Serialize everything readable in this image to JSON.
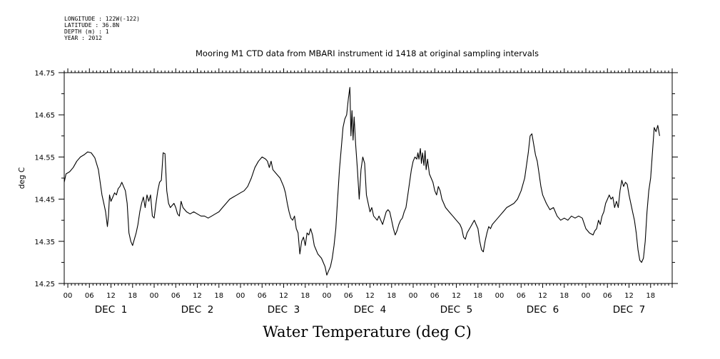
{
  "meta": {
    "longitude": "LONGITUDE : 122W(-122)",
    "latitude": "LATITUDE : 36.8N",
    "depth": "DEPTH (m) : 1",
    "year": "YEAR : 2012"
  },
  "chart_data": {
    "type": "line",
    "title": "Mooring M1 CTD data from MBARI instrument id 1418 at original sampling intervals",
    "xlabel": "Water Temperature (deg C)",
    "ylabel": "deg C",
    "ylim": [
      14.25,
      14.75
    ],
    "yticks": [
      "14.25",
      "14.35",
      "14.45",
      "14.55",
      "14.65",
      "14.75"
    ],
    "xlim_hours": [
      -1,
      168
    ],
    "xhour_labels": [
      "00",
      "06",
      "12",
      "18"
    ],
    "day_labels": [
      "DEC  1",
      "DEC  2",
      "DEC  3",
      "DEC  4",
      "DEC  5",
      "DEC  6",
      "DEC  7"
    ],
    "grid": false,
    "line_color": "#000000",
    "series": [
      {
        "points": [
          [
            -1.0,
            14.49
          ],
          [
            -0.5,
            14.51
          ],
          [
            0.5,
            14.515
          ],
          [
            1.5,
            14.525
          ],
          [
            2.5,
            14.54
          ],
          [
            3.5,
            14.55
          ],
          [
            4.5,
            14.555
          ],
          [
            5.5,
            14.562
          ],
          [
            6.5,
            14.56
          ],
          [
            7.5,
            14.548
          ],
          [
            8.5,
            14.52
          ],
          [
            9.0,
            14.49
          ],
          [
            9.5,
            14.46
          ],
          [
            10.0,
            14.44
          ],
          [
            10.5,
            14.42
          ],
          [
            11.0,
            14.385
          ],
          [
            11.3,
            14.41
          ],
          [
            11.6,
            14.46
          ],
          [
            12.0,
            14.445
          ],
          [
            12.5,
            14.455
          ],
          [
            13.0,
            14.465
          ],
          [
            13.5,
            14.46
          ],
          [
            14.0,
            14.475
          ],
          [
            14.5,
            14.48
          ],
          [
            15.0,
            14.49
          ],
          [
            15.5,
            14.48
          ],
          [
            16.0,
            14.47
          ],
          [
            16.5,
            14.44
          ],
          [
            17.0,
            14.37
          ],
          [
            17.5,
            14.35
          ],
          [
            18.0,
            14.34
          ],
          [
            18.5,
            14.355
          ],
          [
            19.0,
            14.37
          ],
          [
            19.5,
            14.39
          ],
          [
            20.0,
            14.42
          ],
          [
            20.5,
            14.44
          ],
          [
            21.0,
            14.455
          ],
          [
            21.5,
            14.43
          ],
          [
            22.0,
            14.46
          ],
          [
            22.5,
            14.445
          ],
          [
            23.0,
            14.46
          ],
          [
            23.5,
            14.41
          ],
          [
            24.0,
            14.405
          ],
          [
            24.5,
            14.44
          ],
          [
            25.0,
            14.47
          ],
          [
            25.5,
            14.49
          ],
          [
            26.0,
            14.495
          ],
          [
            26.5,
            14.56
          ],
          [
            27.0,
            14.558
          ],
          [
            27.5,
            14.47
          ],
          [
            28.0,
            14.44
          ],
          [
            28.5,
            14.43
          ],
          [
            29.0,
            14.435
          ],
          [
            29.5,
            14.44
          ],
          [
            30.0,
            14.43
          ],
          [
            30.5,
            14.415
          ],
          [
            31.0,
            14.41
          ],
          [
            31.5,
            14.445
          ],
          [
            32.0,
            14.43
          ],
          [
            33.0,
            14.42
          ],
          [
            34.0,
            14.415
          ],
          [
            35.0,
            14.42
          ],
          [
            36.0,
            14.415
          ],
          [
            37.0,
            14.41
          ],
          [
            38.0,
            14.41
          ],
          [
            39.0,
            14.405
          ],
          [
            40.0,
            14.41
          ],
          [
            41.0,
            14.415
          ],
          [
            42.0,
            14.42
          ],
          [
            43.0,
            14.43
          ],
          [
            44.0,
            14.44
          ],
          [
            45.0,
            14.45
          ],
          [
            46.0,
            14.455
          ],
          [
            47.0,
            14.46
          ],
          [
            48.0,
            14.465
          ],
          [
            49.0,
            14.47
          ],
          [
            50.0,
            14.48
          ],
          [
            51.0,
            14.5
          ],
          [
            52.0,
            14.525
          ],
          [
            53.0,
            14.54
          ],
          [
            54.0,
            14.55
          ],
          [
            55.0,
            14.545
          ],
          [
            55.5,
            14.54
          ],
          [
            56.0,
            14.525
          ],
          [
            56.5,
            14.54
          ],
          [
            57.0,
            14.52
          ],
          [
            58.0,
            14.51
          ],
          [
            59.0,
            14.5
          ],
          [
            60.0,
            14.48
          ],
          [
            60.5,
            14.465
          ],
          [
            61.0,
            14.44
          ],
          [
            61.5,
            14.42
          ],
          [
            62.0,
            14.405
          ],
          [
            62.5,
            14.4
          ],
          [
            63.0,
            14.41
          ],
          [
            63.5,
            14.38
          ],
          [
            64.0,
            14.37
          ],
          [
            64.5,
            14.32
          ],
          [
            65.0,
            14.35
          ],
          [
            65.5,
            14.36
          ],
          [
            66.0,
            14.34
          ],
          [
            66.5,
            14.37
          ],
          [
            67.0,
            14.365
          ],
          [
            67.5,
            14.38
          ],
          [
            68.0,
            14.365
          ],
          [
            68.5,
            14.34
          ],
          [
            69.0,
            14.33
          ],
          [
            69.5,
            14.32
          ],
          [
            70.0,
            14.315
          ],
          [
            70.5,
            14.31
          ],
          [
            71.0,
            14.3
          ],
          [
            71.5,
            14.29
          ],
          [
            72.0,
            14.27
          ],
          [
            72.5,
            14.28
          ],
          [
            73.0,
            14.29
          ],
          [
            73.5,
            14.31
          ],
          [
            74.0,
            14.34
          ],
          [
            74.5,
            14.38
          ],
          [
            75.0,
            14.45
          ],
          [
            75.5,
            14.52
          ],
          [
            76.0,
            14.57
          ],
          [
            76.5,
            14.62
          ],
          [
            77.0,
            14.64
          ],
          [
            77.5,
            14.65
          ],
          [
            78.0,
            14.69
          ],
          [
            78.4,
            14.715
          ],
          [
            78.7,
            14.6
          ],
          [
            79.0,
            14.66
          ],
          [
            79.3,
            14.59
          ],
          [
            79.6,
            14.645
          ],
          [
            80.0,
            14.58
          ],
          [
            80.5,
            14.52
          ],
          [
            81.0,
            14.45
          ],
          [
            81.5,
            14.52
          ],
          [
            82.0,
            14.55
          ],
          [
            82.5,
            14.535
          ],
          [
            83.0,
            14.46
          ],
          [
            83.5,
            14.44
          ],
          [
            84.0,
            14.42
          ],
          [
            84.5,
            14.43
          ],
          [
            85.0,
            14.41
          ],
          [
            85.5,
            14.405
          ],
          [
            86.0,
            14.4
          ],
          [
            86.5,
            14.41
          ],
          [
            87.0,
            14.4
          ],
          [
            87.5,
            14.39
          ],
          [
            88.0,
            14.405
          ],
          [
            88.5,
            14.42
          ],
          [
            89.0,
            14.425
          ],
          [
            89.5,
            14.42
          ],
          [
            90.0,
            14.4
          ],
          [
            90.5,
            14.38
          ],
          [
            91.0,
            14.365
          ],
          [
            91.5,
            14.375
          ],
          [
            92.0,
            14.39
          ],
          [
            92.5,
            14.4
          ],
          [
            93.0,
            14.405
          ],
          [
            93.5,
            14.42
          ],
          [
            94.0,
            14.43
          ],
          [
            94.5,
            14.46
          ],
          [
            95.0,
            14.49
          ],
          [
            95.5,
            14.52
          ],
          [
            96.0,
            14.54
          ],
          [
            96.5,
            14.55
          ],
          [
            97.0,
            14.545
          ],
          [
            97.3,
            14.56
          ],
          [
            97.6,
            14.545
          ],
          [
            98.0,
            14.57
          ],
          [
            98.3,
            14.535
          ],
          [
            98.6,
            14.56
          ],
          [
            99.0,
            14.53
          ],
          [
            99.3,
            14.565
          ],
          [
            99.6,
            14.52
          ],
          [
            100.0,
            14.545
          ],
          [
            100.5,
            14.51
          ],
          [
            101.0,
            14.5
          ],
          [
            101.5,
            14.49
          ],
          [
            102.0,
            14.47
          ],
          [
            102.5,
            14.46
          ],
          [
            103.0,
            14.48
          ],
          [
            103.5,
            14.47
          ],
          [
            104.0,
            14.45
          ],
          [
            105.0,
            14.43
          ],
          [
            106.0,
            14.42
          ],
          [
            107.0,
            14.41
          ],
          [
            108.0,
            14.4
          ],
          [
            109.0,
            14.39
          ],
          [
            109.5,
            14.38
          ],
          [
            110.0,
            14.36
          ],
          [
            110.5,
            14.355
          ],
          [
            111.0,
            14.37
          ],
          [
            112.0,
            14.385
          ],
          [
            113.0,
            14.4
          ],
          [
            113.5,
            14.39
          ],
          [
            114.0,
            14.38
          ],
          [
            114.5,
            14.35
          ],
          [
            115.0,
            14.33
          ],
          [
            115.5,
            14.325
          ],
          [
            116.0,
            14.35
          ],
          [
            116.5,
            14.37
          ],
          [
            117.0,
            14.385
          ],
          [
            117.5,
            14.38
          ],
          [
            118.0,
            14.39
          ],
          [
            119.0,
            14.4
          ],
          [
            120.0,
            14.41
          ],
          [
            121.0,
            14.42
          ],
          [
            122.0,
            14.43
          ],
          [
            123.0,
            14.435
          ],
          [
            124.0,
            14.44
          ],
          [
            125.0,
            14.45
          ],
          [
            126.0,
            14.47
          ],
          [
            127.0,
            14.5
          ],
          [
            127.5,
            14.53
          ],
          [
            128.0,
            14.56
          ],
          [
            128.5,
            14.6
          ],
          [
            129.0,
            14.605
          ],
          [
            129.5,
            14.58
          ],
          [
            130.0,
            14.555
          ],
          [
            130.5,
            14.54
          ],
          [
            131.0,
            14.51
          ],
          [
            131.5,
            14.48
          ],
          [
            132.0,
            14.46
          ],
          [
            133.0,
            14.44
          ],
          [
            134.0,
            14.425
          ],
          [
            135.0,
            14.43
          ],
          [
            136.0,
            14.41
          ],
          [
            137.0,
            14.4
          ],
          [
            138.0,
            14.405
          ],
          [
            139.0,
            14.4
          ],
          [
            140.0,
            14.41
          ],
          [
            141.0,
            14.405
          ],
          [
            142.0,
            14.41
          ],
          [
            143.0,
            14.405
          ],
          [
            144.0,
            14.38
          ],
          [
            145.0,
            14.37
          ],
          [
            146.0,
            14.365
          ],
          [
            146.5,
            14.375
          ],
          [
            147.0,
            14.38
          ],
          [
            147.5,
            14.4
          ],
          [
            148.0,
            14.39
          ],
          [
            148.5,
            14.41
          ],
          [
            149.0,
            14.42
          ],
          [
            149.5,
            14.44
          ],
          [
            150.0,
            14.45
          ],
          [
            150.5,
            14.46
          ],
          [
            151.0,
            14.45
          ],
          [
            151.5,
            14.455
          ],
          [
            152.0,
            14.43
          ],
          [
            152.5,
            14.445
          ],
          [
            153.0,
            14.43
          ],
          [
            153.5,
            14.47
          ],
          [
            154.0,
            14.495
          ],
          [
            154.5,
            14.48
          ],
          [
            155.0,
            14.49
          ],
          [
            155.5,
            14.485
          ],
          [
            156.0,
            14.46
          ],
          [
            156.5,
            14.44
          ],
          [
            157.0,
            14.42
          ],
          [
            157.5,
            14.4
          ],
          [
            158.0,
            14.37
          ],
          [
            158.5,
            14.33
          ],
          [
            159.0,
            14.305
          ],
          [
            159.5,
            14.3
          ],
          [
            160.0,
            14.31
          ],
          [
            160.5,
            14.35
          ],
          [
            161.0,
            14.42
          ],
          [
            161.5,
            14.47
          ],
          [
            162.0,
            14.5
          ],
          [
            162.5,
            14.56
          ],
          [
            163.0,
            14.62
          ],
          [
            163.5,
            14.61
          ],
          [
            164.0,
            14.625
          ],
          [
            164.5,
            14.6
          ]
        ]
      }
    ]
  }
}
